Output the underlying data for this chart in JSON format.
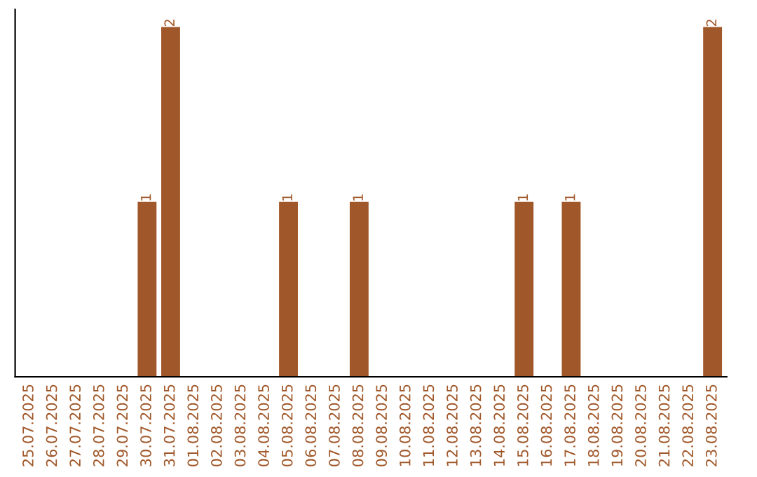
{
  "chart_data": {
    "type": "bar",
    "categories": [
      "25.07.2025",
      "26.07.2025",
      "27.07.2025",
      "28.07.2025",
      "29.07.2025",
      "30.07.2025",
      "31.07.2025",
      "01.08.2025",
      "02.08.2025",
      "03.08.2025",
      "04.08.2025",
      "05.08.2025",
      "06.08.2025",
      "07.08.2025",
      "08.08.2025",
      "09.08.2025",
      "10.08.2025",
      "11.08.2025",
      "12.08.2025",
      "13.08.2025",
      "14.08.2025",
      "15.08.2025",
      "16.08.2025",
      "17.08.2025",
      "18.08.2025",
      "19.08.2025",
      "20.08.2025",
      "21.08.2025",
      "22.08.2025",
      "23.08.2025"
    ],
    "values": [
      0,
      0,
      0,
      0,
      0,
      1,
      2,
      0,
      0,
      0,
      0,
      1,
      0,
      0,
      1,
      0,
      0,
      0,
      0,
      0,
      0,
      1,
      0,
      1,
      0,
      0,
      0,
      0,
      0,
      2
    ],
    "value_labels": [
      null,
      null,
      null,
      null,
      null,
      "1",
      "2",
      null,
      null,
      null,
      null,
      "1",
      null,
      null,
      "1",
      null,
      null,
      null,
      null,
      null,
      null,
      "1",
      null,
      "1",
      null,
      null,
      null,
      null,
      null,
      "2"
    ],
    "color": "#a0582a",
    "ylim": [
      0,
      2.1
    ],
    "tick_labels": "x",
    "grid": false
  }
}
